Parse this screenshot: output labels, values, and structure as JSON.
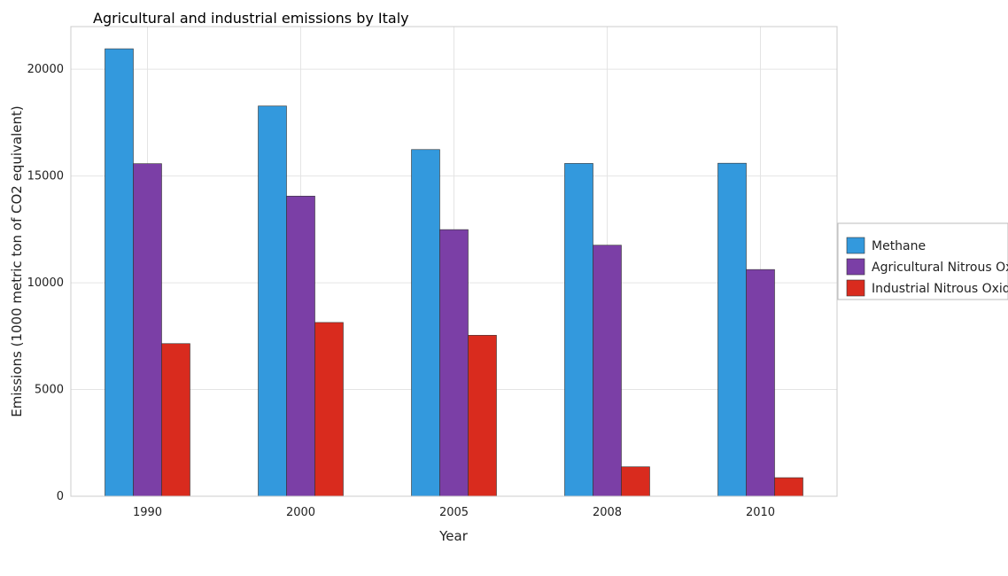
{
  "chart_data": {
    "type": "bar",
    "title": "Agricultural and industrial emissions by Italy",
    "xlabel": "Year",
    "ylabel": "Emissions (1000 metric ton of CO2 equivalent)",
    "categories": [
      "1990",
      "2000",
      "2005",
      "2008",
      "2010"
    ],
    "ylim": [
      0,
      22000
    ],
    "yticks": [
      0,
      5000,
      10000,
      15000,
      20000
    ],
    "grid": true,
    "legend_position": "right",
    "series": [
      {
        "name": "Methane",
        "color": "#3399dd",
        "values": [
          20960,
          18280,
          16240,
          15590,
          15600
        ]
      },
      {
        "name": "Agricultural Nitrous Oxide",
        "color": "#7b3fa6",
        "values": [
          15580,
          14060,
          12490,
          11760,
          10620
        ]
      },
      {
        "name": "Industrial Nitrous Oxide",
        "color": "#d92b1e",
        "values": [
          7150,
          8140,
          7540,
          1380,
          870
        ]
      }
    ]
  }
}
